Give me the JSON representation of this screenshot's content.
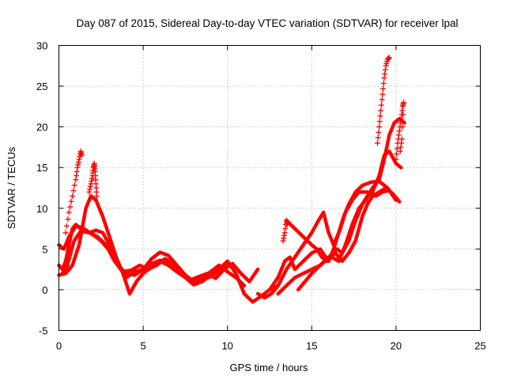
{
  "chart_data": {
    "type": "scatter",
    "title": "Day 087 of 2015, Sidereal Day-to-day VTEC variation (SDTVAR) for receiver lpal",
    "xlabel": "GPS time / hours",
    "ylabel": "SDTVAR / TECUs",
    "xlim": [
      0,
      25
    ],
    "ylim": [
      -5,
      30
    ],
    "x_ticks": [
      "0",
      "5",
      "10",
      "15",
      "20",
      "25"
    ],
    "y_ticks": [
      "-5",
      "0",
      "5",
      "10",
      "15",
      "20",
      "25",
      "30"
    ],
    "grid": true,
    "marker": "plus",
    "color": "#ff0000",
    "series": [
      {
        "points": [
          [
            0.0,
            3.0
          ],
          [
            0.2,
            2.5
          ],
          [
            0.4,
            3.5
          ],
          [
            0.6,
            5.5
          ],
          [
            0.8,
            7.5
          ],
          [
            1.0,
            8.0
          ],
          [
            1.4,
            7.3
          ],
          [
            1.8,
            7.0
          ],
          [
            2.2,
            7.3
          ],
          [
            2.6,
            7.0
          ],
          [
            3.0,
            5.5
          ],
          [
            3.5,
            3.0
          ],
          [
            4.0,
            1.5
          ],
          [
            4.5,
            2.2
          ],
          [
            5.0,
            2.5
          ],
          [
            5.5,
            3.8
          ],
          [
            6.0,
            4.6
          ],
          [
            6.5,
            4.2
          ],
          [
            7.0,
            3.0
          ],
          [
            7.5,
            1.8
          ],
          [
            8.0,
            1.0
          ],
          [
            8.5,
            1.2
          ],
          [
            9.0,
            1.6
          ],
          [
            9.5,
            2.3
          ],
          [
            10.0,
            3.0
          ]
        ]
      },
      {
        "points": [
          [
            0.0,
            5.5
          ],
          [
            0.3,
            5.0
          ],
          [
            0.6,
            6.5
          ],
          [
            1.0,
            7.8
          ],
          [
            1.4,
            7.6
          ],
          [
            2.0,
            6.8
          ],
          [
            2.5,
            6.0
          ],
          [
            3.0,
            4.8
          ],
          [
            3.5,
            3.0
          ],
          [
            4.0,
            2.0
          ],
          [
            4.5,
            1.8
          ],
          [
            5.0,
            2.5
          ],
          [
            5.5,
            3.2
          ],
          [
            6.0,
            3.6
          ],
          [
            6.5,
            3.5
          ],
          [
            7.0,
            2.5
          ],
          [
            7.5,
            1.5
          ],
          [
            8.0,
            0.8
          ],
          [
            8.5,
            1.5
          ],
          [
            9.0,
            2.2
          ],
          [
            9.5,
            3.0
          ],
          [
            10.0,
            2.2
          ],
          [
            10.5,
            1.5
          ],
          [
            11.0,
            0.5
          ]
        ]
      },
      {
        "points": [
          [
            0.0,
            1.8
          ],
          [
            0.4,
            2.0
          ],
          [
            0.8,
            3.0
          ],
          [
            1.2,
            5.5
          ],
          [
            1.6,
            10.0
          ],
          [
            1.9,
            11.5
          ],
          [
            2.2,
            11.0
          ],
          [
            2.6,
            9.0
          ],
          [
            3.0,
            6.5
          ],
          [
            3.4,
            4.0
          ],
          [
            3.8,
            2.0
          ],
          [
            4.2,
            -0.5
          ],
          [
            4.6,
            1.0
          ],
          [
            5.0,
            2.0
          ],
          [
            5.5,
            2.8
          ],
          [
            6.0,
            3.5
          ],
          [
            6.5,
            3.0
          ],
          [
            7.0,
            2.2
          ],
          [
            7.5,
            1.5
          ],
          [
            8.0,
            0.6
          ],
          [
            8.5,
            1.0
          ],
          [
            9.0,
            1.8
          ],
          [
            9.5,
            2.5
          ],
          [
            10.0,
            3.5
          ],
          [
            10.5,
            2.0
          ],
          [
            11.0,
            -0.5
          ],
          [
            11.5,
            -1.5
          ],
          [
            12.0,
            -0.8
          ],
          [
            12.5,
            0.0
          ],
          [
            13.0,
            0.5
          ]
        ]
      },
      {
        "points": [
          [
            0.2,
            2.0
          ],
          [
            0.5,
            3.0
          ],
          [
            0.9,
            6.0
          ],
          [
            1.3,
            7.2
          ],
          [
            1.8,
            7.0
          ],
          [
            2.3,
            6.5
          ],
          [
            2.8,
            5.5
          ],
          [
            3.3,
            3.5
          ],
          [
            3.8,
            2.2
          ],
          [
            4.3,
            2.4
          ],
          [
            4.8,
            3.0
          ],
          [
            5.3,
            2.5
          ],
          [
            5.8,
            3.0
          ],
          [
            6.3,
            3.8
          ],
          [
            6.8,
            3.2
          ],
          [
            7.3,
            2.0
          ],
          [
            7.8,
            1.2
          ],
          [
            8.3,
            1.6
          ],
          [
            8.8,
            2.0
          ],
          [
            9.3,
            1.4
          ],
          [
            9.8,
            2.5
          ],
          [
            10.3,
            3.2
          ],
          [
            10.8,
            2.0
          ],
          [
            11.3,
            1.0
          ],
          [
            11.8,
            2.5
          ]
        ]
      },
      {
        "points": [
          [
            12.5,
            0.0
          ],
          [
            13.0,
            1.5
          ],
          [
            13.4,
            3.5
          ],
          [
            13.7,
            4.0
          ],
          [
            14.0,
            2.5
          ],
          [
            14.5,
            3.5
          ],
          [
            15.0,
            4.5
          ],
          [
            15.5,
            5.0
          ],
          [
            16.0,
            3.5
          ],
          [
            16.3,
            5.0
          ],
          [
            16.6,
            7.0
          ],
          [
            16.9,
            9.0
          ],
          [
            17.2,
            10.5
          ],
          [
            17.6,
            12.0
          ],
          [
            18.0,
            12.8
          ],
          [
            18.5,
            13.2
          ],
          [
            19.0,
            13.3
          ],
          [
            19.5,
            12.5
          ],
          [
            20.0,
            11.0
          ]
        ]
      },
      {
        "points": [
          [
            11.8,
            -0.5
          ],
          [
            12.2,
            -1.0
          ],
          [
            12.6,
            -0.5
          ],
          [
            13.0,
            0.5
          ],
          [
            13.5,
            2.5
          ],
          [
            14.0,
            4.0
          ],
          [
            14.5,
            5.5
          ],
          [
            15.0,
            7.0
          ],
          [
            15.4,
            8.5
          ],
          [
            15.7,
            9.5
          ],
          [
            16.0,
            7.0
          ],
          [
            16.3,
            5.5
          ],
          [
            16.7,
            7.5
          ],
          [
            17.0,
            9.5
          ],
          [
            17.4,
            11.0
          ],
          [
            17.8,
            12.0
          ],
          [
            18.3,
            12.0
          ],
          [
            18.8,
            11.5
          ],
          [
            19.2,
            12.0
          ],
          [
            19.6,
            12.2
          ],
          [
            20.0,
            11.0
          ]
        ]
      },
      {
        "points": [
          [
            13.0,
            -0.5
          ],
          [
            13.5,
            0.5
          ],
          [
            14.0,
            1.5
          ],
          [
            14.5,
            2.0
          ],
          [
            15.0,
            2.5
          ],
          [
            15.5,
            3.0
          ],
          [
            15.8,
            3.5
          ],
          [
            16.2,
            4.0
          ],
          [
            16.6,
            3.5
          ],
          [
            17.0,
            5.5
          ],
          [
            17.4,
            8.0
          ],
          [
            17.8,
            10.0
          ],
          [
            18.2,
            11.0
          ],
          [
            18.6,
            12.5
          ],
          [
            19.0,
            13.5
          ],
          [
            19.3,
            16.0
          ],
          [
            19.6,
            19.0
          ],
          [
            19.9,
            20.5
          ],
          [
            20.2,
            21.0
          ],
          [
            20.5,
            20.5
          ]
        ]
      },
      {
        "points": [
          [
            13.5,
            8.5
          ],
          [
            14.0,
            7.5
          ],
          [
            14.5,
            6.5
          ],
          [
            15.0,
            5.5
          ],
          [
            15.3,
            5.0
          ],
          [
            15.6,
            4.0
          ],
          [
            15.9,
            3.5
          ],
          [
            16.2,
            4.5
          ],
          [
            16.5,
            5.0
          ],
          [
            16.8,
            4.5
          ],
          [
            17.2,
            6.0
          ],
          [
            17.6,
            8.5
          ],
          [
            18.0,
            10.5
          ],
          [
            18.3,
            11.5
          ],
          [
            18.6,
            12.0
          ],
          [
            19.0,
            14.0
          ],
          [
            19.3,
            16.5
          ],
          [
            19.6,
            17.0
          ],
          [
            20.0,
            15.5
          ],
          [
            20.3,
            15.0
          ]
        ]
      },
      {
        "points": [
          [
            14.2,
            0.0
          ],
          [
            14.6,
            1.0
          ],
          [
            15.0,
            2.0
          ],
          [
            15.5,
            3.0
          ],
          [
            16.0,
            4.0
          ],
          [
            16.4,
            4.5
          ],
          [
            16.8,
            3.5
          ],
          [
            17.2,
            4.5
          ],
          [
            17.6,
            6.0
          ],
          [
            18.0,
            9.0
          ],
          [
            18.3,
            10.5
          ],
          [
            18.6,
            11.5
          ],
          [
            19.0,
            12.0
          ],
          [
            19.4,
            12.5
          ],
          [
            19.8,
            11.8
          ],
          [
            20.2,
            10.8
          ]
        ]
      }
    ],
    "spikes": [
      {
        "points": [
          [
            0.4,
            7.0
          ],
          [
            0.6,
            9.5
          ],
          [
            0.8,
            11.5
          ],
          [
            1.0,
            13.5
          ],
          [
            1.1,
            15.0
          ],
          [
            1.2,
            16.0
          ],
          [
            1.3,
            17.0
          ],
          [
            1.35,
            16.5
          ]
        ]
      },
      {
        "points": [
          [
            1.8,
            12.0
          ],
          [
            1.9,
            13.0
          ],
          [
            2.0,
            14.0
          ],
          [
            2.05,
            15.0
          ],
          [
            2.1,
            15.5
          ],
          [
            2.15,
            14.5
          ],
          [
            2.2,
            13.0
          ],
          [
            2.25,
            11.5
          ]
        ]
      },
      {
        "points": [
          [
            18.9,
            18.0
          ],
          [
            19.0,
            20.0
          ],
          [
            19.1,
            22.0
          ],
          [
            19.2,
            24.0
          ],
          [
            19.3,
            26.0
          ],
          [
            19.4,
            27.5
          ],
          [
            19.5,
            28.3
          ],
          [
            19.6,
            28.5
          ]
        ]
      },
      {
        "points": [
          [
            20.0,
            16.0
          ],
          [
            20.1,
            18.0
          ],
          [
            20.2,
            19.5
          ],
          [
            20.3,
            21.0
          ],
          [
            20.4,
            22.5
          ],
          [
            20.45,
            23.0
          ],
          [
            20.35,
            18.5
          ],
          [
            20.25,
            17.0
          ]
        ]
      },
      {
        "points": [
          [
            13.3,
            6.0
          ],
          [
            13.4,
            7.0
          ],
          [
            13.5,
            8.5
          ],
          [
            13.55,
            8.0
          ]
        ]
      }
    ]
  }
}
